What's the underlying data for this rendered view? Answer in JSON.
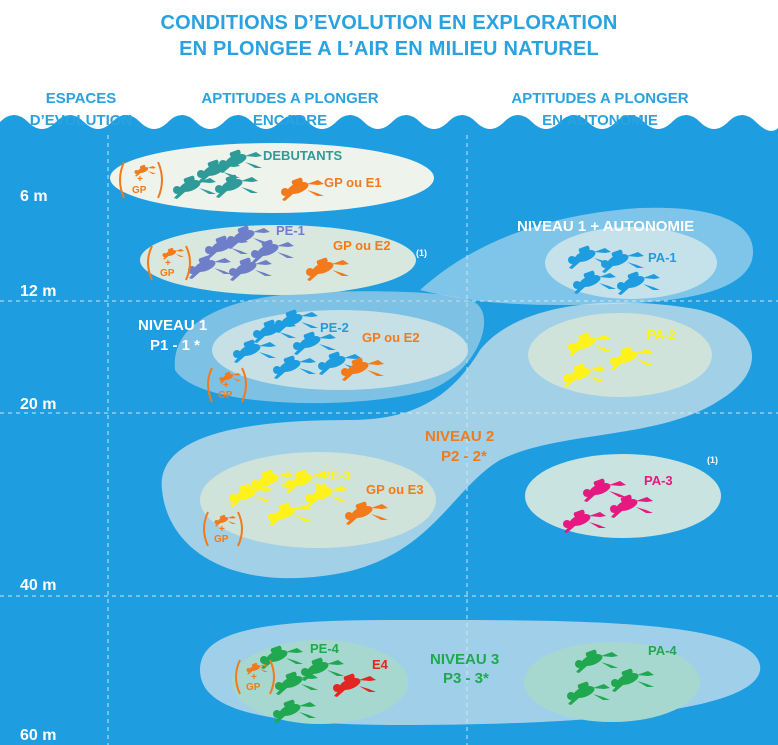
{
  "title": {
    "line1": "CONDITIONS D’EVOLUTION EN EXPLORATION",
    "line2": "EN PLONGEE A L’AIR EN MILIEU NATUREL"
  },
  "columns": {
    "espaces": [
      "ESPACES",
      "D’EVOLUTION"
    ],
    "encadre": [
      "APTITUDES A PLONGER",
      "ENCADRE"
    ],
    "autonomie": [
      "APTITUDES A PLONGER",
      "EN AUTONOMIE"
    ]
  },
  "depths": [
    "6 m",
    "12 m",
    "20 m",
    "40 m",
    "60 m"
  ],
  "groups": {
    "debutants": "DEBUTANTS",
    "gp_e1": "GP ou E1",
    "pe1": "PE-1",
    "gp_e2a": "GP ou E2",
    "note_a": "(1)",
    "niveau1_autonomie": "NIVEAU 1 + AUTONOMIE",
    "pa1": "PA-1",
    "niveau1": [
      "NIVEAU 1",
      "P1 - 1 *"
    ],
    "pe2": "PE-2",
    "gp_e2b": "GP ou E2",
    "pa2": "PA-2",
    "niveau2": [
      "NIVEAU 2",
      "P2 - 2*"
    ],
    "note_b": "(1)",
    "pe3": "PE-3",
    "gp_e3": "GP ou E3",
    "pa3": "PA-3",
    "niveau3": [
      "NIVEAU 3",
      "P3 - 3*"
    ],
    "pe4": "PE-4",
    "e4": "E4",
    "pa4": "PA-4",
    "gp_badge": "GP",
    "plus": "+"
  },
  "colors": {
    "water": "#1e9de0",
    "title_blue": "#2aa2e0",
    "zone_fill": "#e8f0e6",
    "teal": "#2f9b99",
    "orange": "#f27a1a",
    "periwinkle": "#6f7ec9",
    "sky": "#1e9ce0",
    "yellow": "#fff21a",
    "magenta": "#e5197f",
    "green": "#1fa84f",
    "red": "#e52521"
  }
}
